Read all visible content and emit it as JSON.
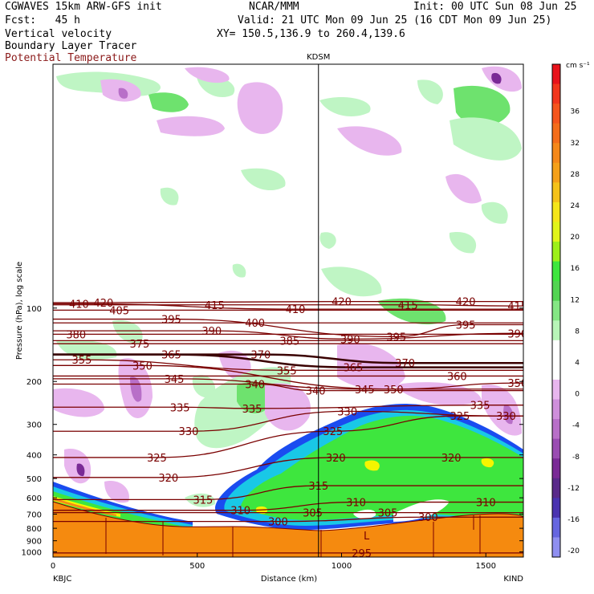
{
  "header": {
    "line1_left": "CGWAVES 15km ARW-GFS init",
    "line1_mid": "NCAR/MMM",
    "line1_right": "Init: 00 UTC Sun 08 Jun 25",
    "line2_left": "Fcst:   45 h",
    "line2_right": "Valid: 21 UTC Mon 09 Jun 25 (16 CDT Mon 09 Jun 25)",
    "field1": "Vertical velocity",
    "field2": "Boundary Layer Tracer",
    "field3": "Potential Temperature",
    "xy": "XY= 150.5,136.9 to 260.4,139.6"
  },
  "colors": {
    "theta": "#7a0000",
    "terrain": "#f58a0f",
    "blt_blue": "#1a4cf0",
    "blt_cyan": "#19c8e6",
    "blt_green": "#3ee63e",
    "blt_yellow": "#f5f500",
    "w_up_light": "#bff5c4",
    "w_up": "#6ee26e",
    "w_down_light": "#e8b6ee",
    "w_down": "#b86fc8",
    "w_down_dark": "#7a2a96"
  },
  "chart_data": {
    "type": "cross-section",
    "ylabel": "Pressure (hPa), log scale",
    "xlabel": "Distance (km)",
    "x_ticks": [
      "0",
      "500",
      "1000",
      "1500"
    ],
    "y_ticks": [
      "100",
      "200",
      "300",
      "400",
      "500",
      "600",
      "700",
      "800",
      "900",
      "1000"
    ],
    "xlim": [
      0,
      1630
    ],
    "ylim": [
      1050,
      10
    ],
    "left_station": "KBJC",
    "right_station": "KIND",
    "marker_station": "KDSM",
    "marker_x": 920,
    "low_label": "L",
    "colorbar_unit": "cm s⁻¹",
    "colorbar_labels": [
      "36",
      "32",
      "28",
      "24",
      "20",
      "16",
      "12",
      "8",
      "4",
      "0",
      "-4",
      "-8",
      "-12",
      "-16",
      "-20"
    ],
    "colorbar_colors": [
      "#e8131b",
      "#f2361c",
      "#f5551c",
      "#f46d1a",
      "#f5881a",
      "#f5a01a",
      "#f5c21a",
      "#f5e61a",
      "#e1f51a",
      "#9df01a",
      "#3ee63e",
      "#52d452",
      "#84e684",
      "#b8f5b8",
      "#ffffff",
      "#ffffff",
      "#e8b6ee",
      "#cf8fdb",
      "#b86fc8",
      "#9a4cb2",
      "#7a2a96",
      "#5a2a8a",
      "#4a33b0",
      "#6666e0",
      "#8f8ff0"
    ],
    "theta_contours": [
      {
        "value": 420,
        "labels": [
          [
            175,
            95
          ],
          [
            1000,
            94
          ],
          [
            1430,
            94
          ]
        ]
      },
      {
        "value": 415,
        "labels": [
          [
            560,
            97
          ],
          [
            1230,
            97
          ],
          [
            1610,
            98
          ]
        ]
      },
      {
        "value": 410,
        "labels": [
          [
            90,
            96
          ],
          [
            840,
            101
          ]
        ]
      },
      {
        "value": 405,
        "labels": [
          [
            230,
            102
          ]
        ]
      },
      {
        "value": 400,
        "labels": [
          [
            700,
            115
          ]
        ]
      },
      {
        "value": 395,
        "labels": [
          [
            410,
            111
          ],
          [
            1190,
            131
          ],
          [
            1430,
            117
          ]
        ]
      },
      {
        "value": 390,
        "labels": [
          [
            550,
            124
          ],
          [
            1030,
            134
          ],
          [
            1610,
            127
          ]
        ]
      },
      {
        "value": 385,
        "labels": [
          [
            820,
            136
          ]
        ]
      },
      {
        "value": 380,
        "labels": [
          [
            80,
            128
          ]
        ]
      },
      {
        "value": 375,
        "labels": [
          [
            300,
            140
          ]
        ]
      },
      {
        "value": 370,
        "labels": [
          [
            720,
            155
          ],
          [
            1220,
            168
          ]
        ]
      },
      {
        "value": 365,
        "labels": [
          [
            410,
            155
          ],
          [
            1040,
            175
          ]
        ]
      },
      {
        "value": 360,
        "labels": [
          [
            1400,
            190
          ]
        ]
      },
      {
        "value": 355,
        "labels": [
          [
            100,
            163
          ],
          [
            810,
            180
          ]
        ]
      },
      {
        "value": 350,
        "labels": [
          [
            310,
            172
          ],
          [
            1180,
            215
          ],
          [
            1610,
            203
          ]
        ]
      },
      {
        "value": 345,
        "labels": [
          [
            420,
            195
          ],
          [
            1080,
            215
          ]
        ]
      },
      {
        "value": 340,
        "labels": [
          [
            700,
            205
          ],
          [
            910,
            218
          ]
        ]
      },
      {
        "value": 335,
        "labels": [
          [
            440,
            255
          ],
          [
            690,
            258
          ],
          [
            1480,
            250
          ]
        ]
      },
      {
        "value": 330,
        "labels": [
          [
            470,
            320
          ],
          [
            1020,
            265
          ],
          [
            1570,
            277
          ]
        ]
      },
      {
        "value": 325,
        "labels": [
          [
            360,
            410
          ],
          [
            970,
            320
          ],
          [
            1410,
            277
          ]
        ]
      },
      {
        "value": 320,
        "labels": [
          [
            400,
            495
          ],
          [
            980,
            410
          ],
          [
            1380,
            410
          ]
        ]
      },
      {
        "value": 315,
        "labels": [
          [
            520,
            610
          ],
          [
            920,
            535
          ]
        ]
      },
      {
        "value": 310,
        "labels": [
          [
            650,
            675
          ],
          [
            1050,
            625
          ],
          [
            1500,
            625
          ]
        ]
      },
      {
        "value": 305,
        "labels": [
          [
            900,
            690
          ],
          [
            1160,
            690
          ]
        ]
      },
      {
        "value": 300,
        "labels": [
          [
            780,
            750
          ],
          [
            1300,
            720
          ]
        ]
      },
      {
        "value": 295,
        "labels": [
          [
            1070,
            1010
          ]
        ]
      }
    ]
  }
}
